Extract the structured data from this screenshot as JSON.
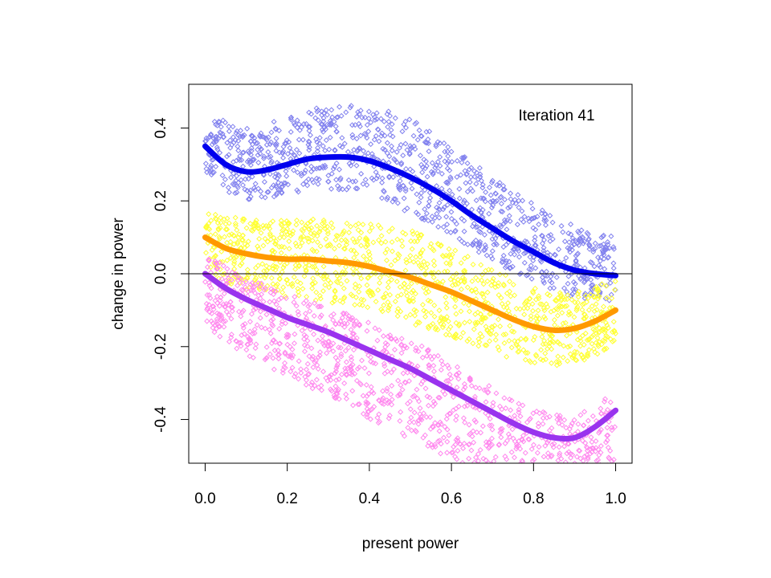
{
  "chart_data": {
    "type": "scatter",
    "xlabel": "present power",
    "ylabel": "change in power",
    "annotation": "Iteration 41",
    "xlim": [
      -0.04,
      1.04
    ],
    "ylim": [
      -0.52,
      0.52
    ],
    "xticks": [
      0.0,
      0.2,
      0.4,
      0.6,
      0.8,
      1.0
    ],
    "xtick_labels": [
      "0.0",
      "0.2",
      "0.4",
      "0.6",
      "0.8",
      "1.0"
    ],
    "yticks": [
      -0.4,
      -0.2,
      0.0,
      0.2,
      0.4
    ],
    "ytick_labels": [
      "-0.4",
      "-0.2",
      "0.0",
      "0.2",
      "0.4"
    ],
    "reference_line_y": 0.0,
    "grid": false,
    "legend": "none",
    "series": [
      {
        "color_points": "#8080ee",
        "color_curve": "#0000ee",
        "scatter_band": {
          "lower_offset": -0.1,
          "upper_offset": 0.16
        },
        "curve": {
          "x": [
            0.0,
            0.05,
            0.1,
            0.15,
            0.2,
            0.25,
            0.3,
            0.35,
            0.4,
            0.45,
            0.5,
            0.55,
            0.6,
            0.65,
            0.7,
            0.75,
            0.8,
            0.85,
            0.9,
            0.95,
            1.0
          ],
          "y": [
            0.35,
            0.3,
            0.28,
            0.285,
            0.3,
            0.315,
            0.32,
            0.32,
            0.31,
            0.29,
            0.265,
            0.235,
            0.2,
            0.16,
            0.125,
            0.09,
            0.06,
            0.03,
            0.01,
            0.0,
            -0.005
          ]
        }
      },
      {
        "color_points": "#ffff33",
        "color_curve": "#ff9900",
        "scatter_band": {
          "lower_offset": -0.13,
          "upper_offset": 0.13
        },
        "curve": {
          "x": [
            0.0,
            0.05,
            0.1,
            0.15,
            0.2,
            0.25,
            0.3,
            0.35,
            0.4,
            0.45,
            0.5,
            0.55,
            0.6,
            0.65,
            0.7,
            0.75,
            0.8,
            0.85,
            0.9,
            0.95,
            1.0
          ],
          "y": [
            0.1,
            0.07,
            0.055,
            0.045,
            0.04,
            0.04,
            0.035,
            0.03,
            0.02,
            0.005,
            -0.01,
            -0.03,
            -0.05,
            -0.075,
            -0.1,
            -0.125,
            -0.145,
            -0.155,
            -0.15,
            -0.13,
            -0.1
          ]
        }
      },
      {
        "color_points": "#ff88ee",
        "color_curve": "#9933ee",
        "scatter_band": {
          "lower_offset": -0.2,
          "upper_offset": 0.08
        },
        "curve": {
          "x": [
            0.0,
            0.05,
            0.1,
            0.15,
            0.2,
            0.25,
            0.3,
            0.35,
            0.4,
            0.45,
            0.5,
            0.55,
            0.6,
            0.65,
            0.7,
            0.75,
            0.8,
            0.85,
            0.9,
            0.95,
            1.0
          ],
          "y": [
            0.0,
            -0.04,
            -0.07,
            -0.095,
            -0.12,
            -0.14,
            -0.16,
            -0.185,
            -0.21,
            -0.235,
            -0.26,
            -0.29,
            -0.32,
            -0.35,
            -0.38,
            -0.41,
            -0.435,
            -0.45,
            -0.45,
            -0.42,
            -0.375
          ]
        }
      }
    ]
  }
}
